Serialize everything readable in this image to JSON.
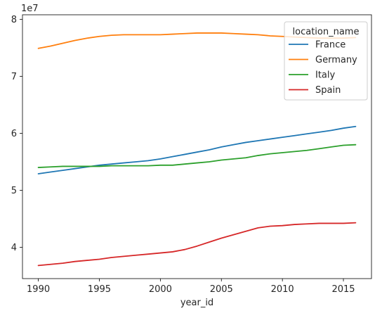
{
  "chart_data": {
    "type": "line",
    "xlabel": "year_id",
    "ylabel": "",
    "y_offset_label": "1e7",
    "xlim": [
      1988.7,
      2017.3
    ],
    "ylim": [
      34500000,
      80800000
    ],
    "x_ticks": [
      1990,
      1995,
      2000,
      2005,
      2010,
      2015
    ],
    "x_tick_labels": [
      "1990",
      "1995",
      "2000",
      "2005",
      "2010",
      "2015"
    ],
    "y_ticks": [
      40000000,
      50000000,
      60000000,
      70000000,
      80000000
    ],
    "y_tick_labels": [
      "4",
      "5",
      "6",
      "7",
      "8"
    ],
    "legend": {
      "title": "location_name",
      "position": "top-right"
    },
    "grid": false,
    "x": [
      1990,
      1991,
      1992,
      1993,
      1994,
      1995,
      1996,
      1997,
      1998,
      1999,
      2000,
      2001,
      2002,
      2003,
      2004,
      2005,
      2006,
      2007,
      2008,
      2009,
      2010,
      2011,
      2012,
      2013,
      2014,
      2015,
      2016
    ],
    "series": [
      {
        "name": "France",
        "color": "#1f77b4",
        "values": [
          52900000,
          53200000,
          53500000,
          53800000,
          54100000,
          54400000,
          54600000,
          54800000,
          55000000,
          55200000,
          55500000,
          55900000,
          56300000,
          56700000,
          57100000,
          57600000,
          58000000,
          58400000,
          58700000,
          59000000,
          59300000,
          59600000,
          59900000,
          60200000,
          60500000,
          60900000,
          61200000
        ]
      },
      {
        "name": "Germany",
        "color": "#ff7f0e",
        "values": [
          74900000,
          75300000,
          75800000,
          76300000,
          76700000,
          77000000,
          77200000,
          77300000,
          77300000,
          77300000,
          77300000,
          77400000,
          77500000,
          77600000,
          77600000,
          77600000,
          77500000,
          77400000,
          77300000,
          77100000,
          77000000,
          76900000,
          76800000,
          76700000,
          76700000,
          76700000,
          76800000
        ]
      },
      {
        "name": "Italy",
        "color": "#2ca02c",
        "values": [
          54000000,
          54100000,
          54200000,
          54200000,
          54200000,
          54200000,
          54300000,
          54300000,
          54300000,
          54300000,
          54400000,
          54400000,
          54600000,
          54800000,
          55000000,
          55300000,
          55500000,
          55700000,
          56100000,
          56400000,
          56600000,
          56800000,
          57000000,
          57300000,
          57600000,
          57900000,
          58000000
        ]
      },
      {
        "name": "Spain",
        "color": "#d62728",
        "values": [
          36800000,
          37000000,
          37200000,
          37500000,
          37700000,
          37900000,
          38200000,
          38400000,
          38600000,
          38800000,
          39000000,
          39200000,
          39600000,
          40200000,
          40900000,
          41600000,
          42200000,
          42800000,
          43400000,
          43700000,
          43800000,
          44000000,
          44100000,
          44200000,
          44200000,
          44200000,
          44300000
        ]
      }
    ]
  }
}
